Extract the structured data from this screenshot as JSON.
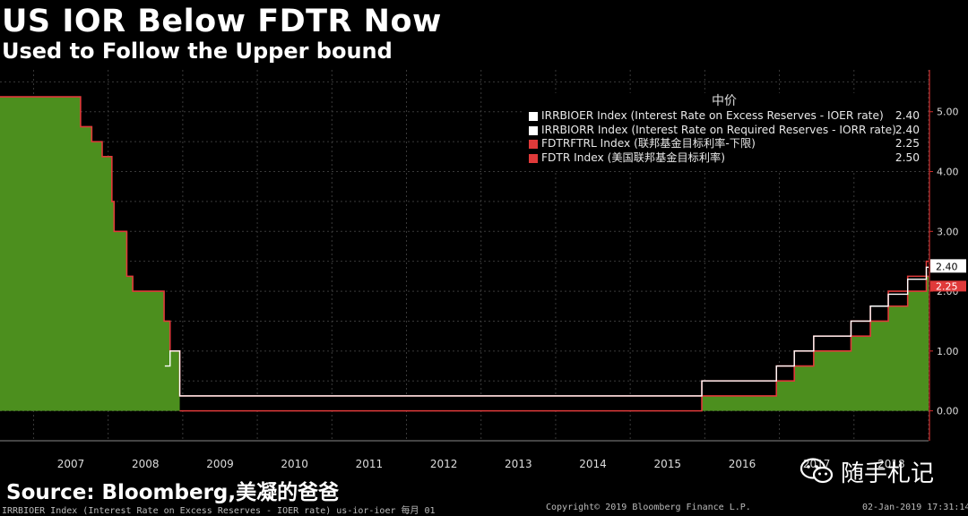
{
  "header": {
    "title": "US IOR Below FDTR Now",
    "subtitle": "Used to Follow the Upper bound"
  },
  "legend": {
    "header": "中价",
    "items": [
      {
        "label": "IRRBIOER Index (Interest Rate on Excess Reserves - IOER rate)",
        "value": "2.40",
        "color": "#ffffff"
      },
      {
        "label": "IRRBIORR Index (Interest Rate on Required Reserves - IORR rate)",
        "value": "2.40",
        "color": "#ffffff"
      },
      {
        "label": "FDTRFTRL Index (联邦基金目标利率-下限)",
        "value": "2.25",
        "color": "#e03a3a"
      },
      {
        "label": "FDTR Index (美国联邦基金目标利率)",
        "value": "2.50",
        "color": "#e03a3a"
      }
    ]
  },
  "right_tags": [
    {
      "text": "2.40",
      "value": 2.4
    },
    {
      "text": "2.25",
      "value": 2.25
    }
  ],
  "source": "Source: Bloomberg,美凝的爸爸",
  "footer": {
    "left": "IRRBIOER Index (Interest Rate on Excess Reserves - IOER rate) us-ior-ioer  每月 01",
    "center": "Copyright© 2019 Bloomberg Finance L.P.",
    "right": "02-Jan-2019 17:31:14"
  },
  "watermark": {
    "text": "随手札记",
    "icon": "wechat-icon"
  },
  "colors": {
    "fill": "#4c8f1e",
    "upper": "#e03a3a",
    "ioer": "#ffffff",
    "grid": "#3a3a3a",
    "axis": "#d03030"
  },
  "chart_data": {
    "type": "area",
    "ylim": [
      -0.5,
      5.7
    ],
    "yticks": [
      "0.00",
      "1.00",
      "2.00",
      "3.00",
      "4.00",
      "5.00"
    ],
    "ytick_values": [
      0,
      1,
      2,
      3,
      4,
      5
    ],
    "xlim": [
      2006.55,
      2019.0
    ],
    "xticks": [
      "2007",
      "2008",
      "2009",
      "2010",
      "2011",
      "2012",
      "2013",
      "2014",
      "2015",
      "2016",
      "2017",
      "2018"
    ],
    "grid": true,
    "legend_position": "top-right",
    "series": [
      {
        "name": "FDTR Index (美国联邦基金目标利率)",
        "role": "upper",
        "kind": "step",
        "x": [
          2006.55,
          2007.63,
          2007.78,
          2007.83,
          2007.92,
          2008.05,
          2008.08,
          2008.25,
          2008.33,
          2008.75,
          2008.83,
          2008.96,
          2015.96,
          2016.96,
          2017.2,
          2017.46,
          2017.96,
          2018.22,
          2018.46,
          2018.72,
          2018.97,
          2019.0
        ],
        "y": [
          5.25,
          4.75,
          4.5,
          4.5,
          4.25,
          3.5,
          3.0,
          2.25,
          2.0,
          1.5,
          1.0,
          0.25,
          0.5,
          0.75,
          1.0,
          1.25,
          1.5,
          1.75,
          2.0,
          2.25,
          2.5,
          2.5
        ]
      },
      {
        "name": "FDTRFTRL Index (联邦基金目标利率-下限)",
        "role": "lower",
        "kind": "step",
        "x": [
          2008.96,
          2015.96,
          2016.96,
          2017.2,
          2017.46,
          2017.96,
          2018.22,
          2018.46,
          2018.72,
          2018.97,
          2019.0
        ],
        "y": [
          0.0,
          0.25,
          0.5,
          0.75,
          1.0,
          1.25,
          1.5,
          1.75,
          2.0,
          2.25,
          2.25
        ]
      },
      {
        "name": "IRRBIOER Index (Interest Rate on Excess Reserves - IOER rate)",
        "role": "ioer",
        "kind": "step",
        "x": [
          2008.76,
          2008.83,
          2008.96,
          2015.96,
          2016.96,
          2017.2,
          2017.46,
          2017.96,
          2018.22,
          2018.46,
          2018.72,
          2018.97,
          2019.0
        ],
        "y": [
          0.75,
          1.0,
          0.25,
          0.5,
          0.75,
          1.0,
          1.25,
          1.5,
          1.75,
          1.95,
          2.2,
          2.4,
          2.4
        ]
      }
    ]
  }
}
